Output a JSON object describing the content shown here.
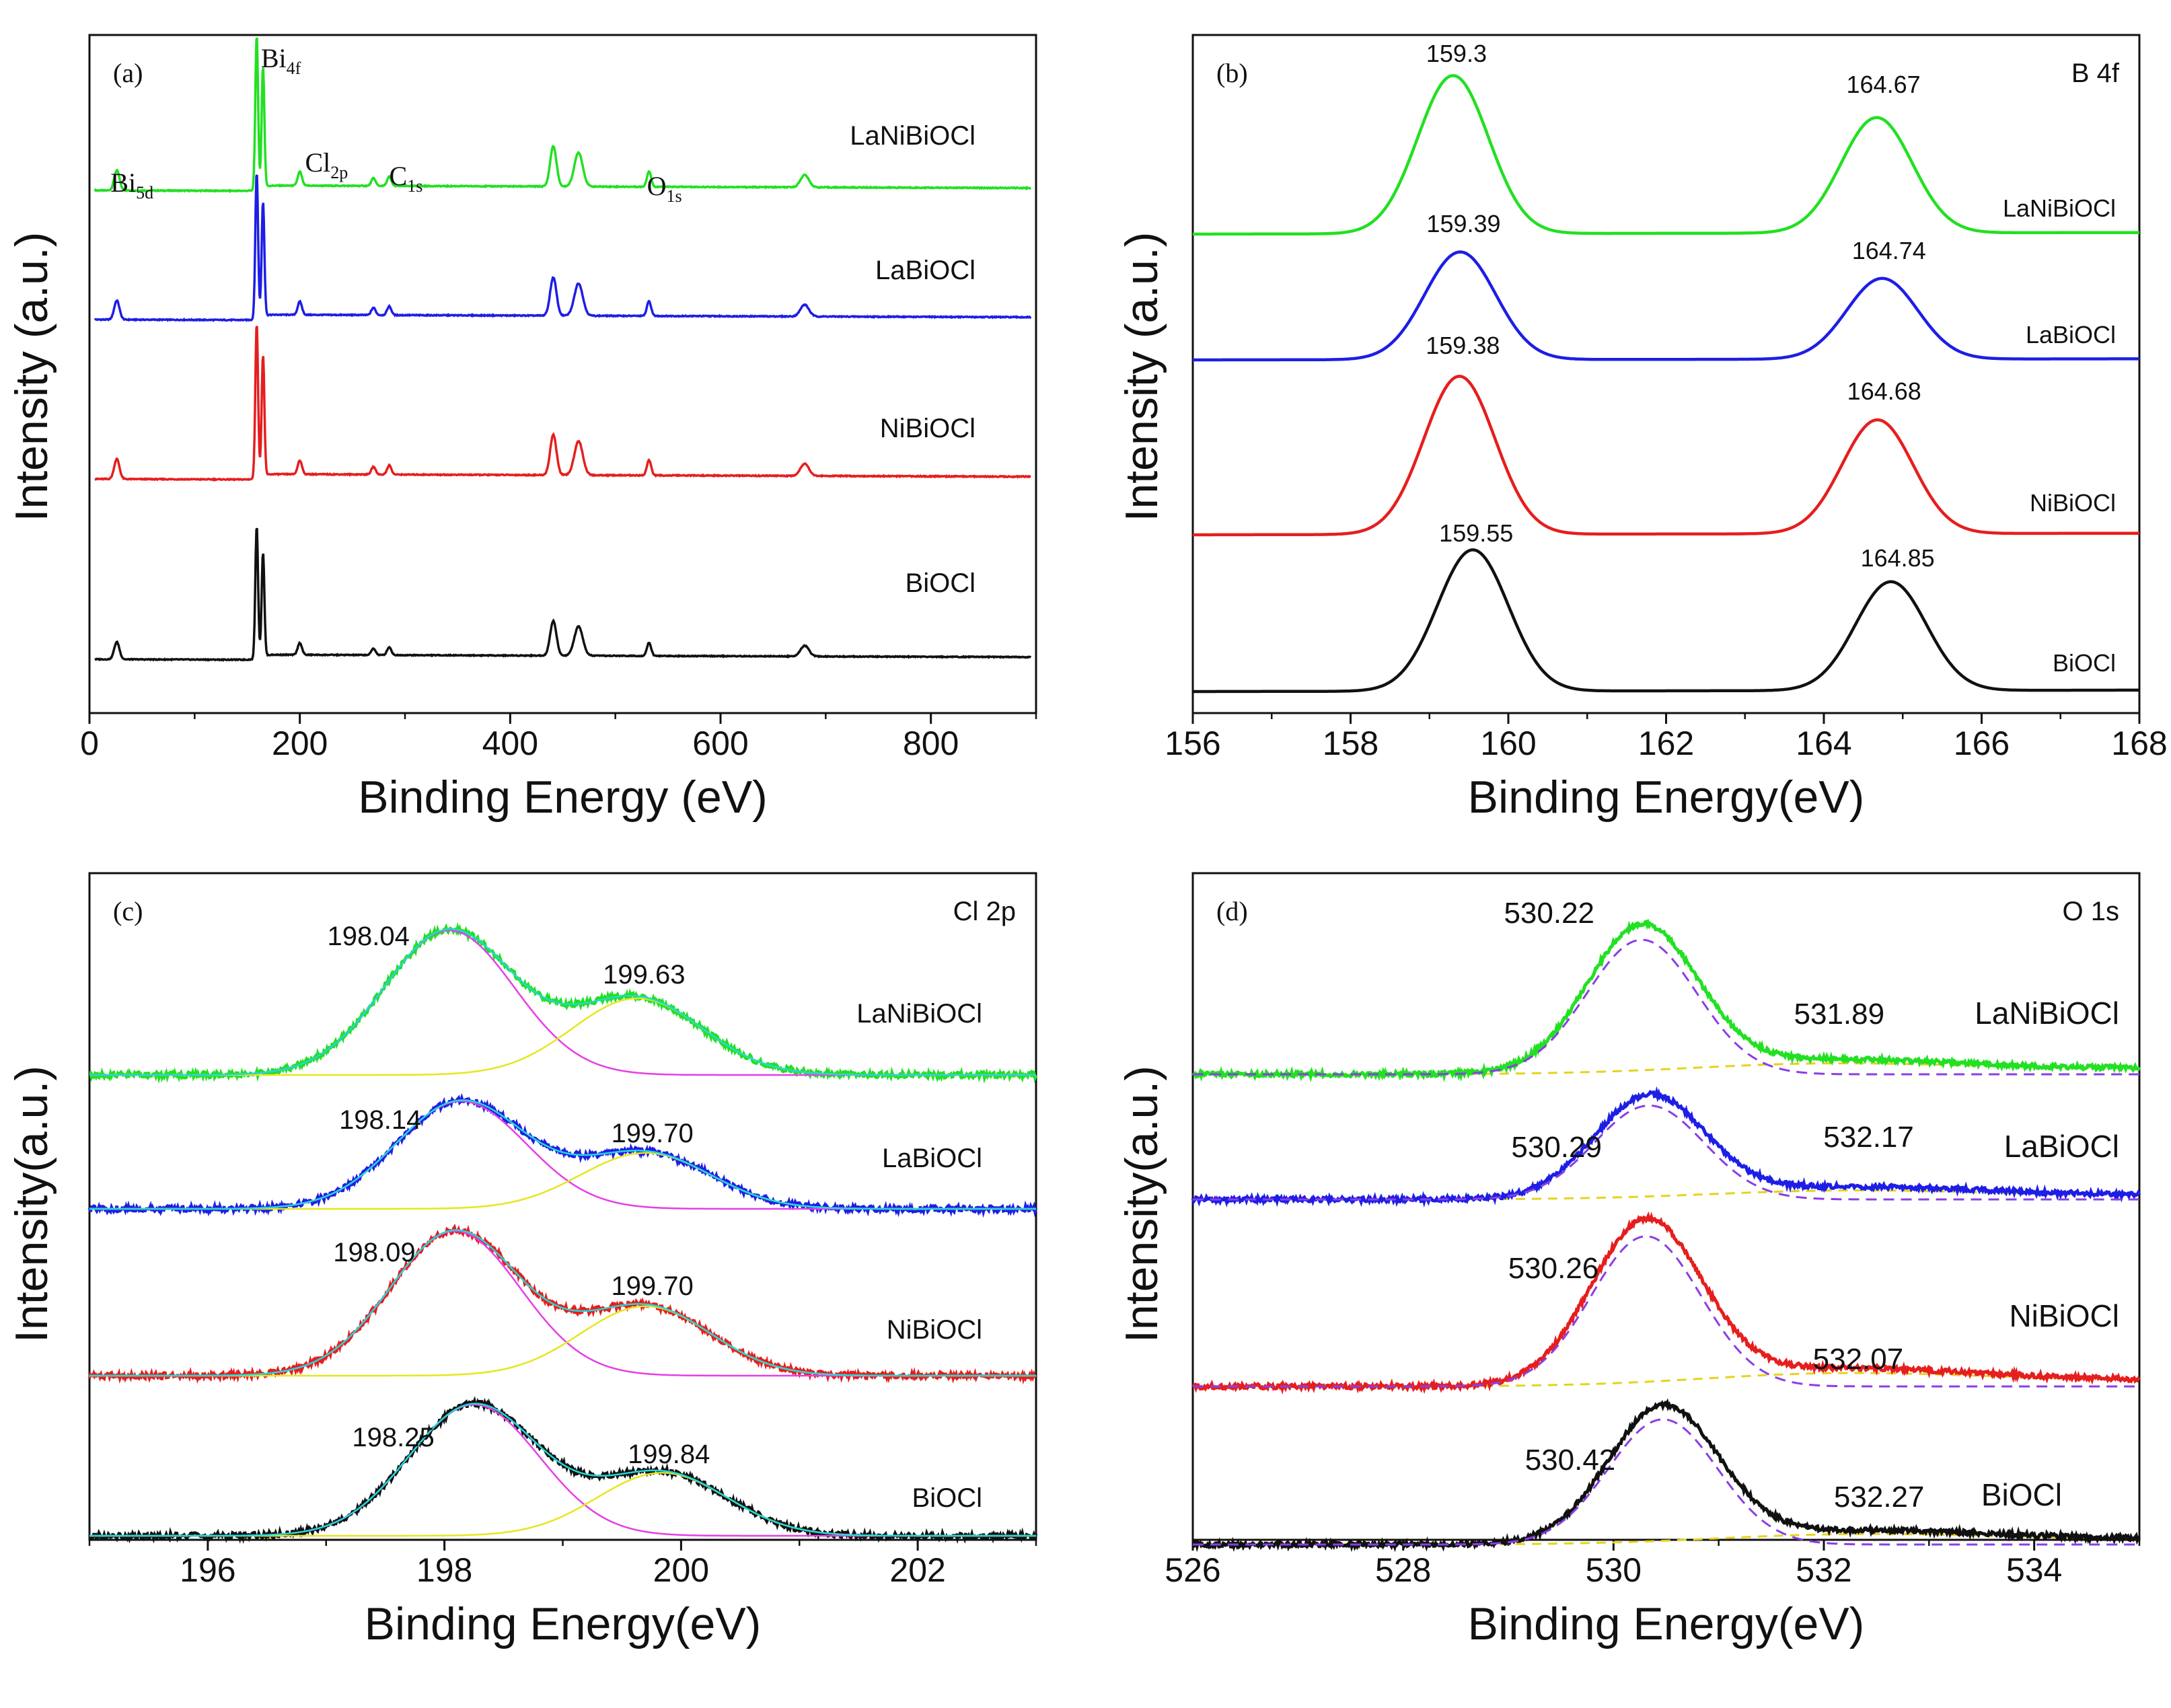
{
  "chart_data": [
    {
      "id": "a",
      "type": "line",
      "panel_label": "(a)",
      "xlabel": "Binding Energy (eV)",
      "ylabel": "Intensity (a.u.)",
      "xlim": [
        0,
        900
      ],
      "xticks": [
        0,
        200,
        400,
        600,
        800
      ],
      "xtick_labels": [
        "0",
        "200",
        "400",
        "600",
        "800"
      ],
      "peak_labels": [
        {
          "main": "Bi",
          "sub": "5d",
          "x": 20,
          "series": "LaNiBiOCl"
        },
        {
          "main": "Bi",
          "sub": "4f",
          "x": 163,
          "series": "LaNiBiOCl"
        },
        {
          "main": "Cl",
          "sub": "2p",
          "x": 205,
          "series": "LaNiBiOCl"
        },
        {
          "main": "C",
          "sub": "1s",
          "x": 285,
          "series": "LaNiBiOCl"
        },
        {
          "main": "O",
          "sub": "1s",
          "x": 530,
          "series": "LaNiBiOCl"
        }
      ],
      "peaks": [
        {
          "x": 26,
          "h": 0.13,
          "w": 2.5
        },
        {
          "x": 159,
          "h": 1.0,
          "w": 1.3
        },
        {
          "x": 165,
          "h": 0.78,
          "w": 1.3
        },
        {
          "x": 200,
          "h": 0.09,
          "w": 2
        },
        {
          "x": 270,
          "h": 0.05,
          "w": 2
        },
        {
          "x": 285,
          "h": 0.06,
          "w": 2
        },
        {
          "x": 441,
          "h": 0.26,
          "w": 3
        },
        {
          "x": 465,
          "h": 0.22,
          "w": 4
        },
        {
          "x": 532,
          "h": 0.1,
          "w": 2
        },
        {
          "x": 680,
          "h": 0.08,
          "w": 4
        }
      ],
      "series": [
        {
          "name": "LaNiBiOCl",
          "color": "#22e022",
          "label": "LaNiBiOCl",
          "scale": 1.0
        },
        {
          "name": "LaBiOCl",
          "color": "#1e1ee6",
          "label": "LaBiOCl",
          "scale": 0.95
        },
        {
          "name": "NiBiOCl",
          "color": "#e61e1e",
          "label": "NiBiOCl",
          "scale": 1.0
        },
        {
          "name": "BiOCl",
          "color": "#111111",
          "label": "BiOCl",
          "scale": 0.92
        }
      ]
    },
    {
      "id": "b",
      "type": "line",
      "panel_label": "(b)",
      "corner_label": "B 4f",
      "xlabel": "Binding Energy(eV)",
      "ylabel": "Intensity (a.u.)",
      "xlim": [
        156,
        168
      ],
      "xticks": [
        156,
        158,
        160,
        162,
        164,
        166,
        168
      ],
      "xtick_labels": [
        "156",
        "158",
        "160",
        "162",
        "164",
        "166",
        "168"
      ],
      "series": [
        {
          "name": "LaNiBiOCl",
          "color": "#22e022",
          "label": "LaNiBiOCl",
          "peak1": 159.3,
          "peak2": 164.67,
          "peak1_label": "159.3",
          "peak2_label": "164.67"
        },
        {
          "name": "LaBiOCl",
          "color": "#1e1ee6",
          "label": "LaBiOCl",
          "peak1": 159.39,
          "peak2": 164.74,
          "peak1_label": "159.39",
          "peak2_label": "164.74"
        },
        {
          "name": "NiBiOCl",
          "color": "#e61e1e",
          "label": "NiBiOCl",
          "peak1": 159.38,
          "peak2": 164.68,
          "peak1_label": "159.38",
          "peak2_label": "164.68"
        },
        {
          "name": "BiOCl",
          "color": "#111111",
          "label": "BiOCl",
          "peak1": 159.55,
          "peak2": 164.85,
          "peak1_label": "159.55",
          "peak2_label": "164.85"
        }
      ]
    },
    {
      "id": "c",
      "type": "line",
      "panel_label": "(c)",
      "corner_label": "Cl 2p",
      "xlabel": "Binding Energy(eV)",
      "ylabel": "Intensity(a.u.)",
      "xlim": [
        195,
        203
      ],
      "xticks": [
        196,
        198,
        200,
        202
      ],
      "xtick_labels": [
        "196",
        "198",
        "200",
        "202"
      ],
      "fit_colors": {
        "component1": "#e63ee6",
        "component2": "#e6e61e",
        "envelope": "#22d8d8"
      },
      "series": [
        {
          "name": "LaNiBiOCl",
          "color": "#22e022",
          "label": "LaNiBiOCl",
          "peak1": 198.04,
          "peak2": 199.63,
          "peak1_label": "198.04",
          "peak2_label": "199.63"
        },
        {
          "name": "LaBiOCl",
          "color": "#1e1ee6",
          "label": "LaBiOCl",
          "peak1": 198.14,
          "peak2": 199.7,
          "peak1_label": "198.14",
          "peak2_label": "199.70"
        },
        {
          "name": "NiBiOCl",
          "color": "#e61e1e",
          "label": "NiBiOCl",
          "peak1": 198.09,
          "peak2": 199.7,
          "peak1_label": "198.09",
          "peak2_label": "199.70"
        },
        {
          "name": "BiOCl",
          "color": "#111111",
          "label": "BiOCl",
          "peak1": 198.25,
          "peak2": 199.84,
          "peak1_label": "198.25",
          "peak2_label": "199.84"
        }
      ]
    },
    {
      "id": "d",
      "type": "line",
      "panel_label": "(d)",
      "corner_label": "O 1s",
      "xlabel": "Binding Energy(eV)",
      "ylabel": "Intensity(a.u.)",
      "xlim": [
        526,
        535
      ],
      "xticks": [
        526,
        528,
        530,
        532,
        534
      ],
      "xtick_labels": [
        "526",
        "528",
        "530",
        "532",
        "534"
      ],
      "fit_colors": {
        "component1": "#8a3ee6",
        "baseline": "#e6d21e"
      },
      "series": [
        {
          "name": "LaNiBiOCl",
          "color": "#22e022",
          "label": "LaNiBiOCl",
          "peak1": 530.22,
          "peak2": 531.89,
          "peak1_label": "530.22",
          "peak2_label": "531.89"
        },
        {
          "name": "LaBiOCl",
          "color": "#1e1ee6",
          "label": "LaBiOCl",
          "peak1": 530.29,
          "peak2": 532.17,
          "peak1_label": "530.29",
          "peak2_label": "532.17"
        },
        {
          "name": "NiBiOCl",
          "color": "#e61e1e",
          "label": "NiBiOCl",
          "peak1": 530.26,
          "peak2": 532.07,
          "peak1_label": "530.26",
          "peak2_label": "532.07"
        },
        {
          "name": "BiOCl",
          "color": "#111111",
          "label": "BiOCl",
          "peak1": 530.42,
          "peak2": 532.27,
          "peak1_label": "530.42",
          "peak2_label": "532.27"
        }
      ]
    }
  ]
}
